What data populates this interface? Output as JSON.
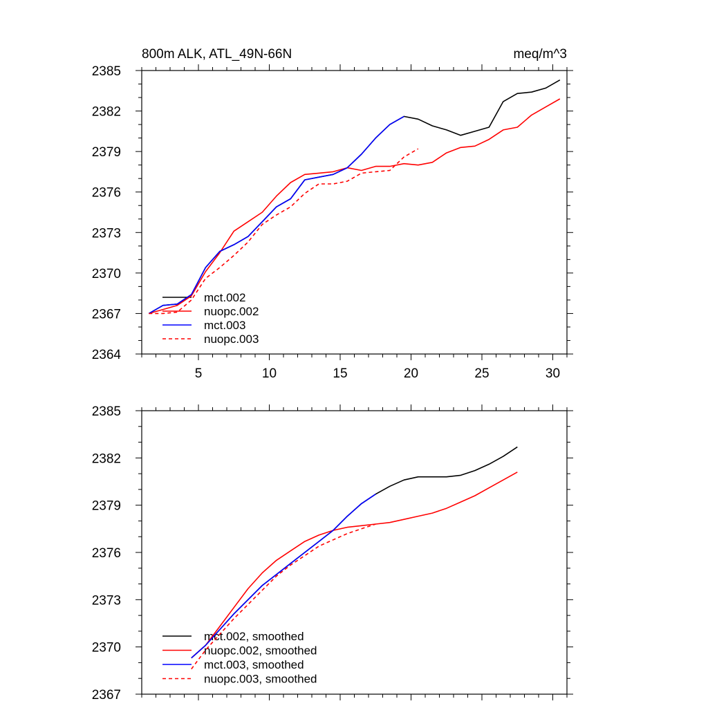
{
  "chart_data": [
    {
      "type": "line",
      "title": "800m ALK, ATL_49N-66N",
      "units": "meq/m^3",
      "xlim": [
        1,
        31
      ],
      "ylim": [
        2364,
        2385
      ],
      "xticks": [
        5,
        10,
        15,
        20,
        25,
        30
      ],
      "yticks": [
        2364,
        2367,
        2370,
        2373,
        2376,
        2379,
        2382,
        2385
      ],
      "x_tick_labels_shown": true,
      "grid": false,
      "legend_position": "bottom-left",
      "series": [
        {
          "name": "mct.002",
          "color": "#000000",
          "dash": "solid",
          "x": [
            1.5,
            2.5,
            3.5,
            4.5,
            5.5,
            6.5,
            7.5,
            8.5,
            9.5,
            10.5,
            11.5,
            12.5,
            13.5,
            14.5,
            15.5,
            16.5,
            17.5,
            18.5,
            19.5,
            20.5,
            21.5,
            22.5,
            23.5,
            24.5,
            25.5,
            26.5,
            27.5,
            28.5,
            29.5,
            30.5
          ],
          "y": [
            2367.0,
            2367.6,
            2367.7,
            2368.4,
            2370.4,
            2371.6,
            2372.1,
            2372.7,
            2373.8,
            2374.9,
            2375.5,
            2376.9,
            2377.1,
            2377.3,
            2377.8,
            2378.8,
            2380.0,
            2381.0,
            2381.6,
            2381.4,
            2380.9,
            2380.6,
            2380.2,
            2380.5,
            2380.8,
            2382.7,
            2383.3,
            2383.4,
            2383.7,
            2384.3
          ]
        },
        {
          "name": "nuopc.002",
          "color": "#ff0000",
          "dash": "solid",
          "x": [
            1.5,
            2.5,
            3.5,
            4.5,
            5.5,
            6.5,
            7.5,
            8.5,
            9.5,
            10.5,
            11.5,
            12.5,
            13.5,
            14.5,
            15.5,
            16.5,
            17.5,
            18.5,
            19.5,
            20.5,
            21.5,
            22.5,
            23.5,
            24.5,
            25.5,
            26.5,
            27.5,
            28.5,
            29.5,
            30.5
          ],
          "y": [
            2367.0,
            2367.3,
            2367.6,
            2368.3,
            2370.1,
            2371.5,
            2373.1,
            2373.8,
            2374.5,
            2375.7,
            2376.7,
            2377.3,
            2377.4,
            2377.5,
            2377.8,
            2377.6,
            2377.9,
            2377.9,
            2378.1,
            2378.0,
            2378.2,
            2378.9,
            2379.3,
            2379.4,
            2379.9,
            2380.6,
            2380.8,
            2381.7,
            2382.3,
            2382.9
          ]
        },
        {
          "name": "mct.003",
          "color": "#0000ff",
          "dash": "solid",
          "x": [
            1.5,
            2.5,
            3.5,
            4.5,
            5.5,
            6.5,
            7.5,
            8.5,
            9.5,
            10.5,
            11.5,
            12.5,
            13.5,
            14.5,
            15.5,
            16.5,
            17.5,
            18.5,
            19.5
          ],
          "y": [
            2367.0,
            2367.6,
            2367.7,
            2368.4,
            2370.4,
            2371.6,
            2372.1,
            2372.7,
            2373.8,
            2374.9,
            2375.5,
            2376.9,
            2377.1,
            2377.3,
            2377.8,
            2378.8,
            2380.0,
            2381.0,
            2381.6
          ]
        },
        {
          "name": "nuopc.003",
          "color": "#ff0000",
          "dash": "dashed",
          "x": [
            1.5,
            2.5,
            3.5,
            4.5,
            5.5,
            6.5,
            7.5,
            8.5,
            9.5,
            10.5,
            11.5,
            12.5,
            13.5,
            14.5,
            15.5,
            16.5,
            17.5,
            18.5,
            19.5,
            20.5
          ],
          "y": [
            2367.0,
            2367.0,
            2367.1,
            2368.0,
            2369.6,
            2370.4,
            2371.3,
            2372.3,
            2373.6,
            2374.3,
            2374.9,
            2375.9,
            2376.6,
            2376.6,
            2376.8,
            2377.4,
            2377.5,
            2377.6,
            2378.6,
            2379.2
          ]
        }
      ]
    },
    {
      "type": "line",
      "xlim": [
        1,
        31
      ],
      "ylim": [
        2367,
        2385
      ],
      "xticks": [
        5,
        10,
        15,
        20,
        25,
        30
      ],
      "yticks": [
        2367,
        2370,
        2373,
        2376,
        2379,
        2382,
        2385
      ],
      "x_tick_labels_shown": false,
      "grid": false,
      "legend_position": "bottom-left",
      "series": [
        {
          "name": "mct.002, smoothed",
          "color": "#000000",
          "dash": "solid",
          "x": [
            4.5,
            5.5,
            6.5,
            7.5,
            8.5,
            9.5,
            10.5,
            11.5,
            12.5,
            13.5,
            14.5,
            15.5,
            16.5,
            17.5,
            18.5,
            19.5,
            20.5,
            21.5,
            22.5,
            23.5,
            24.5,
            25.5,
            26.5,
            27.5
          ],
          "y": [
            2369.3,
            2370.1,
            2371.1,
            2372.1,
            2373.0,
            2373.9,
            2374.6,
            2375.3,
            2376.0,
            2376.7,
            2377.4,
            2378.3,
            2379.1,
            2379.7,
            2380.2,
            2380.6,
            2380.8,
            2380.8,
            2380.8,
            2380.9,
            2381.2,
            2381.6,
            2382.1,
            2382.7
          ]
        },
        {
          "name": "nuopc.002, smoothed",
          "color": "#ff0000",
          "dash": "solid",
          "x": [
            4.5,
            5.5,
            6.5,
            7.5,
            8.5,
            9.5,
            10.5,
            11.5,
            12.5,
            13.5,
            14.5,
            15.5,
            16.5,
            17.5,
            18.5,
            19.5,
            20.5,
            21.5,
            22.5,
            23.5,
            24.5,
            25.5,
            26.5,
            27.5
          ],
          "y": [
            2369.3,
            2370.1,
            2371.3,
            2372.5,
            2373.7,
            2374.7,
            2375.5,
            2376.1,
            2376.7,
            2377.1,
            2377.4,
            2377.6,
            2377.7,
            2377.8,
            2377.9,
            2378.1,
            2378.3,
            2378.5,
            2378.8,
            2379.2,
            2379.6,
            2380.1,
            2380.6,
            2381.1
          ]
        },
        {
          "name": "mct.003, smoothed",
          "color": "#0000ff",
          "dash": "solid",
          "x": [
            4.5,
            5.5,
            6.5,
            7.5,
            8.5,
            9.5,
            10.5,
            11.5,
            12.5,
            13.5,
            14.5,
            15.5,
            16.5,
            17.5
          ],
          "y": [
            2369.3,
            2370.1,
            2371.1,
            2372.1,
            2373.0,
            2373.9,
            2374.6,
            2375.3,
            2376.0,
            2376.7,
            2377.4,
            2378.3,
            2379.1,
            2379.7
          ]
        },
        {
          "name": "nuopc.003, smoothed",
          "color": "#ff0000",
          "dash": "dashed",
          "x": [
            4.5,
            5.5,
            6.5,
            7.5,
            8.5,
            9.5,
            10.5,
            11.5,
            12.5,
            13.5,
            14.5,
            15.5,
            16.5,
            17.5
          ],
          "y": [
            2368.6,
            2369.8,
            2370.8,
            2371.8,
            2372.7,
            2373.6,
            2374.5,
            2375.2,
            2375.8,
            2376.4,
            2376.8,
            2377.2,
            2377.5,
            2377.8
          ]
        }
      ]
    }
  ]
}
